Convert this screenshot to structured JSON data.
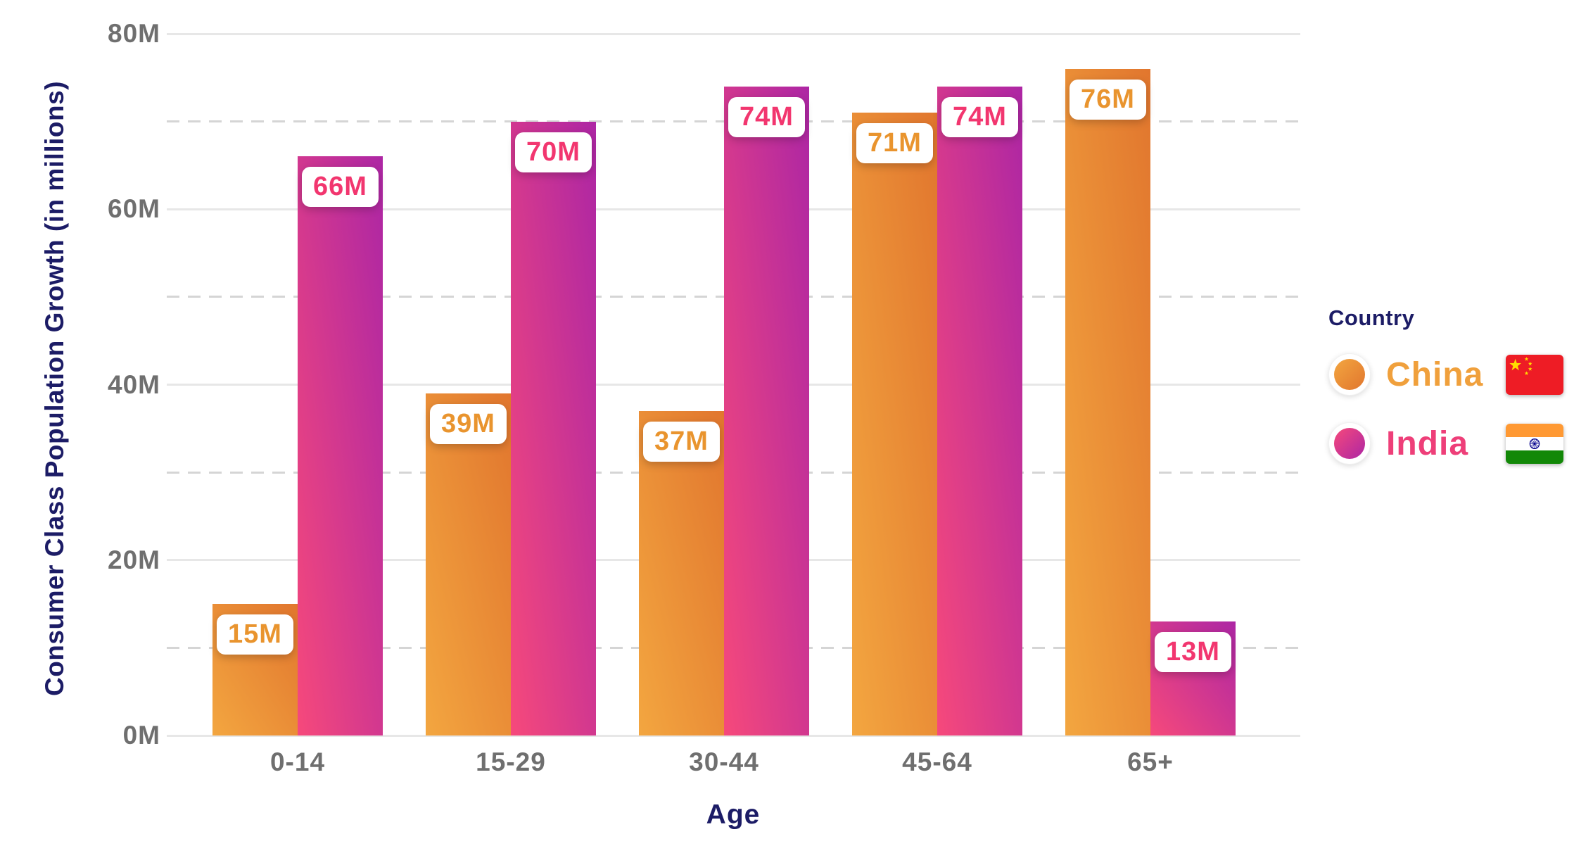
{
  "chart_data": {
    "type": "bar",
    "title": "",
    "xlabel": "Age",
    "ylabel": "Consumer Class Population Growth (in millions)",
    "categories": [
      "0-14",
      "15-29",
      "30-44",
      "45-64",
      "65+"
    ],
    "series": [
      {
        "name": "China",
        "flag": "china",
        "values": [
          15,
          39,
          37,
          71,
          76
        ],
        "value_labels": [
          "15M",
          "39M",
          "37M",
          "71M",
          "76M"
        ],
        "bar_gradient": [
          "#f3a640",
          "#e1762e"
        ],
        "label_color": "#e9942e",
        "legend_color": "#f0a03c"
      },
      {
        "name": "India",
        "flag": "india",
        "values": [
          66,
          70,
          74,
          74,
          13
        ],
        "value_labels": [
          "66M",
          "70M",
          "74M",
          "74M",
          "13M"
        ],
        "bar_gradient": [
          "#f6497b",
          "#ad26a4"
        ],
        "label_color": "#f2366f",
        "legend_color": "#ee3f79"
      }
    ],
    "ylim": [
      0,
      80
    ],
    "yticks": [
      {
        "value": 0,
        "label": "0M"
      },
      {
        "value": 20,
        "label": "20M"
      },
      {
        "value": 40,
        "label": "40M"
      },
      {
        "value": 60,
        "label": "60M"
      },
      {
        "value": 80,
        "label": "80M"
      }
    ],
    "grid": {
      "solid_values": [
        0,
        20,
        40,
        60,
        80
      ],
      "dashed_values": [
        10,
        30,
        50,
        70
      ],
      "grid_on": true
    },
    "legend": {
      "title": "Country",
      "position": "right"
    }
  },
  "colors": {
    "axis_title": "#1c1c66",
    "tick_label": "#6f6f6f",
    "grid_solid": "#e7e7e7",
    "grid_dashed": "#d5d5d5",
    "background": "#ffffff",
    "china_flag_red": "#ee1c25",
    "china_flag_yellow": "#ffde00",
    "india_flag_saffron": "#ff9933",
    "india_flag_green": "#128807",
    "india_flag_navy": "#06038d"
  }
}
